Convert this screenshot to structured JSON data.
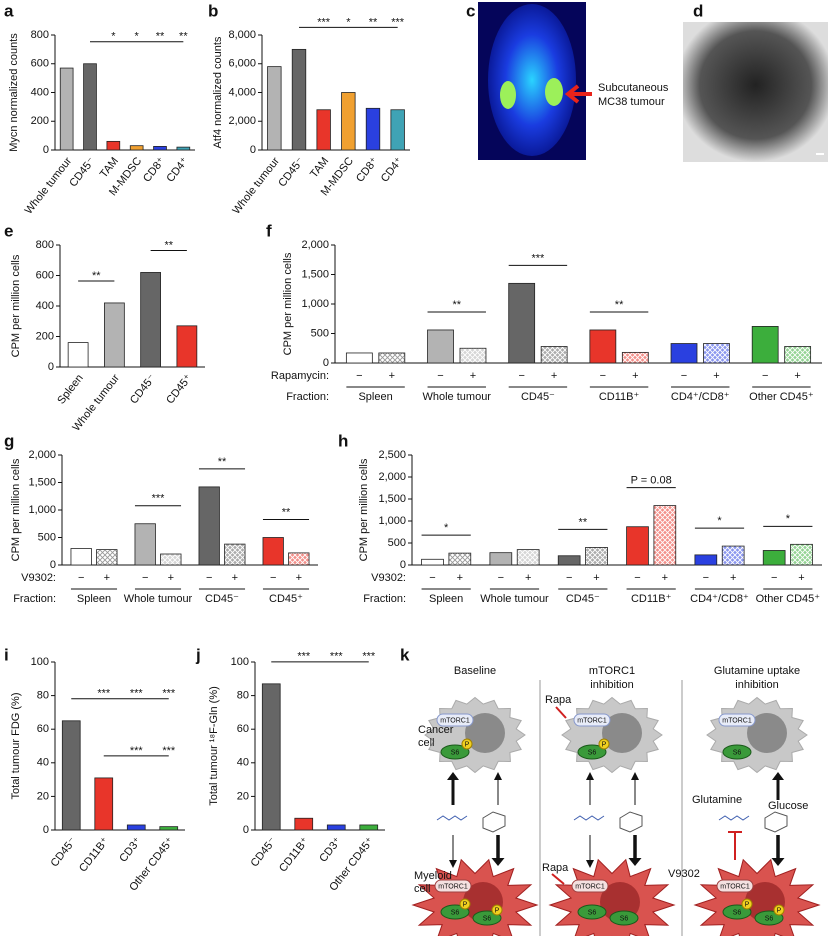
{
  "chart_data": [
    {
      "panel": "a",
      "type": "bar",
      "ylabel": "Mycn normalized counts",
      "categories": [
        "Whole tumour",
        "CD45⁻",
        "TAM",
        "M-MDSC",
        "CD8⁺",
        "CD4⁺"
      ],
      "values": [
        570,
        600,
        60,
        30,
        25,
        20
      ],
      "colors": [
        "#b3b3b3",
        "#666666",
        "#e8352a",
        "#f0a030",
        "#2a40e0",
        "#3fa3b5"
      ],
      "ylim": [
        0,
        800
      ],
      "yticks": [
        0,
        200,
        400,
        600,
        800
      ],
      "annotations": [
        {
          "from": 1,
          "to": 5,
          "stars": [
            "*",
            "*",
            "**",
            "**"
          ]
        }
      ]
    },
    {
      "panel": "b",
      "type": "bar",
      "ylabel": "Atf4 normalized counts",
      "categories": [
        "Whole tumour",
        "CD45⁻",
        "TAM",
        "M-MDSC",
        "CD8⁺",
        "CD4⁺"
      ],
      "values": [
        5800,
        7000,
        2800,
        4000,
        2900,
        2800
      ],
      "colors": [
        "#b3b3b3",
        "#666666",
        "#e8352a",
        "#f0a030",
        "#2a40e0",
        "#3fa3b5"
      ],
      "ylim": [
        0,
        8000
      ],
      "yticks": [
        0,
        {
          "value": 2000,
          "label": "2,000"
        },
        {
          "value": 4000,
          "label": "4,000"
        },
        {
          "value": 6000,
          "label": "6,000"
        },
        {
          "value": 8000,
          "label": "8,000"
        }
      ],
      "annotations": [
        {
          "from": 1,
          "to": 5,
          "stars": [
            "***",
            "*",
            "**",
            "***"
          ]
        }
      ]
    },
    {
      "panel": "e",
      "type": "bar",
      "ylabel": "CPM per million cells",
      "categories": [
        "Spleen",
        "Whole tumour",
        "CD45⁻",
        "CD45⁺"
      ],
      "values": [
        160,
        420,
        620,
        270
      ],
      "colors": [
        "#ffffff",
        "#b3b3b3",
        "#666666",
        "#e8352a"
      ],
      "ylim": [
        0,
        800
      ],
      "yticks": [
        0,
        200,
        400,
        600,
        800
      ],
      "annotations": [
        {
          "from": 0,
          "to": 1,
          "stars": [
            "**"
          ]
        },
        {
          "from": 2,
          "to": 3,
          "stars": [
            "**"
          ]
        }
      ]
    },
    {
      "panel": "f",
      "type": "grouped_bar",
      "ylabel": "CPM per million cells",
      "treatment_label": "Rapamycin:",
      "fraction_label": "Fraction:",
      "categories": [
        "Spleen",
        "Whole tumour",
        "CD45⁻",
        "CD11B⁺",
        "CD4⁺/CD8⁺",
        "Other CD45⁺"
      ],
      "colors": [
        "#ffffff",
        "#b3b3b3",
        "#666666",
        "#e8352a",
        "#2a40e0",
        "#3cae3c"
      ],
      "series": [
        {
          "name": "−",
          "values": [
            170,
            560,
            1350,
            560,
            330,
            620
          ]
        },
        {
          "name": "+",
          "values": [
            170,
            250,
            280,
            180,
            330,
            280
          ]
        }
      ],
      "ylim": [
        0,
        2000
      ],
      "yticks": [
        0,
        500,
        {
          "value": 1000,
          "label": "1,000"
        },
        {
          "value": 1500,
          "label": "1,500"
        },
        {
          "value": 2000,
          "label": "2,000"
        }
      ],
      "annotations": [
        {
          "group": 1,
          "text": "**"
        },
        {
          "group": 2,
          "text": "***"
        },
        {
          "group": 3,
          "text": "**"
        }
      ]
    },
    {
      "panel": "g",
      "type": "grouped_bar",
      "ylabel": "CPM per million cells",
      "treatment_label": "V9302:",
      "fraction_label": "Fraction:",
      "categories": [
        "Spleen",
        "Whole tumour",
        "CD45⁻",
        "CD45⁺"
      ],
      "colors": [
        "#ffffff",
        "#b3b3b3",
        "#666666",
        "#e8352a"
      ],
      "series": [
        {
          "name": "−",
          "values": [
            300,
            750,
            1420,
            500
          ]
        },
        {
          "name": "+",
          "values": [
            280,
            200,
            380,
            220
          ]
        }
      ],
      "ylim": [
        0,
        2000
      ],
      "yticks": [
        0,
        500,
        {
          "value": 1000,
          "label": "1,000"
        },
        {
          "value": 1500,
          "label": "1,500"
        },
        {
          "value": 2000,
          "label": "2,000"
        }
      ],
      "annotations": [
        {
          "group": 1,
          "text": "***"
        },
        {
          "group": 2,
          "text": "**"
        },
        {
          "group": 3,
          "text": "**"
        }
      ]
    },
    {
      "panel": "h",
      "type": "grouped_bar",
      "ylabel": "CPM per million cells",
      "treatment_label": "V9302:",
      "fraction_label": "Fraction:",
      "categories": [
        "Spleen",
        "Whole tumour",
        "CD45⁻",
        "CD11B⁺",
        "CD4⁺/CD8⁺",
        "Other CD45⁺"
      ],
      "colors": [
        "#ffffff",
        "#b3b3b3",
        "#666666",
        "#e8352a",
        "#2a40e0",
        "#3cae3c"
      ],
      "series": [
        {
          "name": "−",
          "values": [
            130,
            280,
            210,
            870,
            230,
            330
          ]
        },
        {
          "name": "+",
          "values": [
            270,
            350,
            400,
            1350,
            430,
            470
          ]
        }
      ],
      "ylim": [
        0,
        2500
      ],
      "yticks": [
        0,
        500,
        {
          "value": 1000,
          "label": "1,000"
        },
        {
          "value": 1500,
          "label": "1,500"
        },
        {
          "value": 2000,
          "label": "2,000"
        },
        {
          "value": 2500,
          "label": "2,500"
        }
      ],
      "annotations": [
        {
          "group": 0,
          "text": "*"
        },
        {
          "group": 2,
          "text": "**"
        },
        {
          "group": 3,
          "text": "P = 0.08"
        },
        {
          "group": 4,
          "text": "*"
        },
        {
          "group": 5,
          "text": "*"
        }
      ]
    },
    {
      "panel": "i",
      "type": "bar",
      "ylabel": "Total tumour FDG (%)",
      "categories": [
        "CD45⁻",
        "CD11B⁺",
        "CD3⁺",
        "Other CD45⁺"
      ],
      "values": [
        65,
        31,
        3,
        2
      ],
      "colors": [
        "#666666",
        "#e8352a",
        "#2a40e0",
        "#3cae3c"
      ],
      "ylim": [
        0,
        100
      ],
      "yticks": [
        0,
        20,
        40,
        60,
        80,
        100
      ],
      "annotations": [
        {
          "from": 0,
          "to": 3,
          "stars": [
            "***",
            "***",
            "***"
          ]
        },
        {
          "from": 1,
          "to": 3,
          "stars": [
            "***",
            "***"
          ]
        }
      ]
    },
    {
      "panel": "j",
      "type": "bar",
      "ylabel": "Total tumour ¹⁸F-Gln (%)",
      "categories": [
        "CD45⁻",
        "CD11B⁺",
        "CD3⁺",
        "Other CD45⁺"
      ],
      "values": [
        87,
        7,
        3,
        3
      ],
      "colors": [
        "#666666",
        "#e8352a",
        "#2a40e0",
        "#3cae3c"
      ],
      "ylim": [
        0,
        100
      ],
      "yticks": [
        0,
        20,
        40,
        60,
        80,
        100
      ],
      "annotations": [
        {
          "from": 0,
          "to": 3,
          "stars": [
            "***",
            "***",
            "***"
          ]
        }
      ]
    }
  ],
  "diagrams": {
    "c": {
      "panel": "c",
      "label_lines": [
        "Subcutaneous",
        "MC38 tumour"
      ]
    },
    "d": {
      "panel": "d"
    },
    "k": {
      "panel": "k",
      "headers": [
        [
          "Baseline"
        ],
        [
          "mTORC1",
          "inhibition"
        ],
        [
          "Glutamine uptake",
          "inhibition"
        ]
      ],
      "cancer_cell": [
        "Cancer",
        "cell"
      ],
      "myeloid_cell": [
        "Myeloid",
        "cell"
      ],
      "mtorc1": "mTORC1",
      "s6": "S6",
      "p": "P",
      "rapa": "Rapa",
      "glutamine": "Glutamine",
      "glucose": "Glucose",
      "v9302": "V9302"
    }
  }
}
